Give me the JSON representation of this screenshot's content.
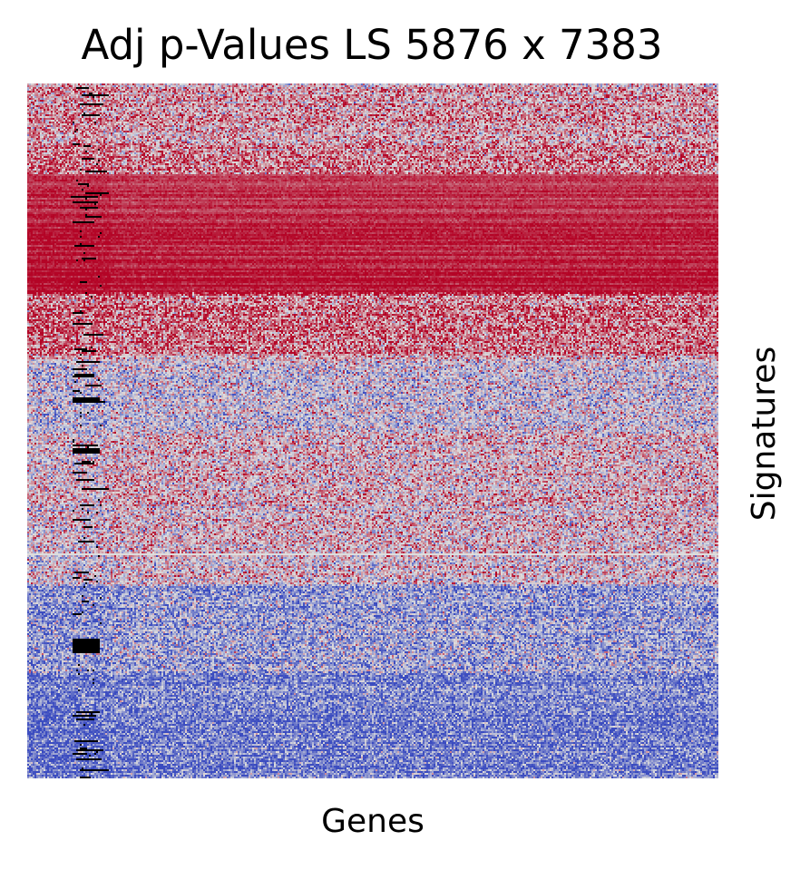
{
  "chart_data": {
    "type": "heatmap",
    "title": "Adj p-Values LS 5876 x 7383",
    "xlabel": "Genes",
    "ylabel": "Signatures",
    "rows": 5876,
    "cols": 7383,
    "colormap": "coolwarm",
    "colorbar": false,
    "ticks": false,
    "colors": {
      "low": "#3b4cc0",
      "mid": "#dddddd",
      "high": "#b40426",
      "missing": "#000000"
    },
    "row_bands": [
      {
        "rows": [
          0,
          500
        ],
        "pattern": "mixed, mostly light red"
      },
      {
        "rows": [
          500,
          1770
        ],
        "pattern": "predominantly dark red"
      },
      {
        "rows": [
          1770,
          2300
        ],
        "pattern": "red / light red"
      },
      {
        "rows": [
          2300,
          4000
        ],
        "pattern": "mixed blue and red"
      },
      {
        "rows": [
          4000,
          5876
        ],
        "pattern": "predominantly blue"
      }
    ]
  }
}
